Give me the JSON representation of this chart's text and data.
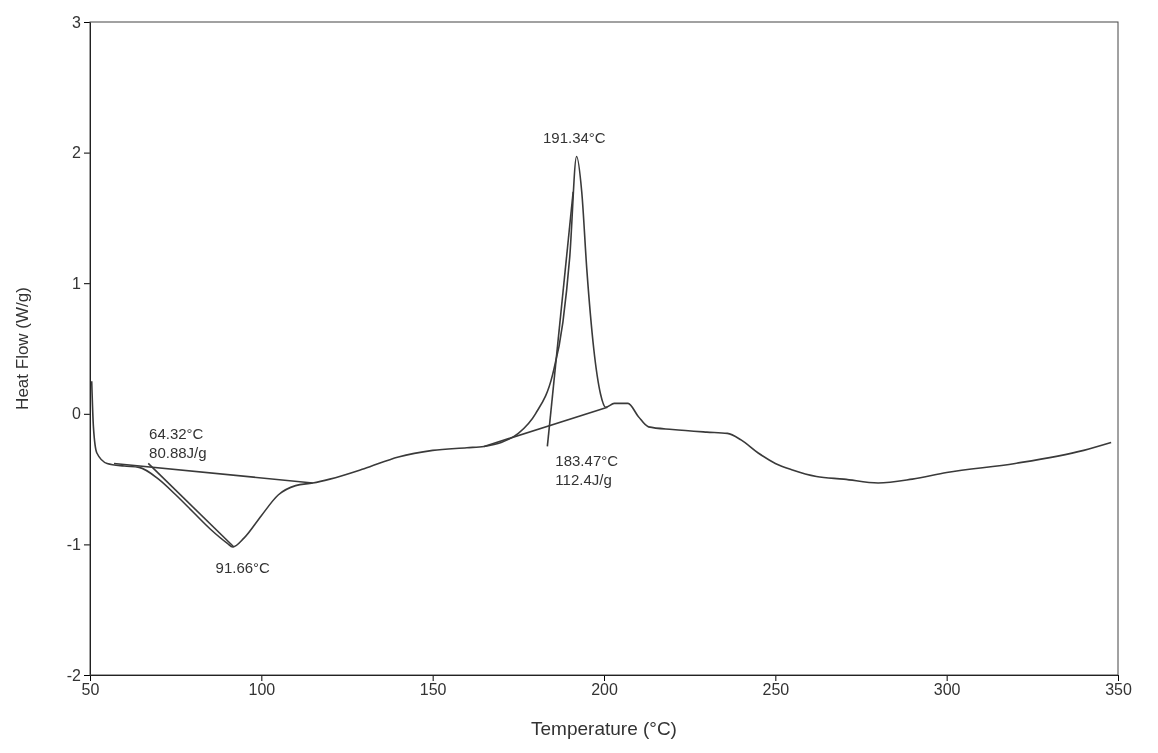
{
  "chart_data": {
    "type": "line",
    "xlabel": "Temperature (°C)",
    "ylabel": "Heat Flow (W/g)",
    "xlim": [
      50,
      350
    ],
    "ylim": [
      -2,
      3
    ],
    "xticks": [
      50,
      100,
      150,
      200,
      250,
      300,
      350
    ],
    "yticks": [
      -2,
      -1,
      0,
      1,
      2,
      3
    ],
    "grid": false,
    "marker": "none",
    "line_style": "solid",
    "series": [
      {
        "color": "#3a3a3a",
        "x": [
          50.5,
          51,
          52,
          55,
          60,
          64.3,
          70,
          75,
          80,
          85,
          90,
          91.66,
          95,
          100,
          105,
          110,
          115,
          120,
          130,
          140,
          150,
          160,
          165,
          170,
          175,
          180,
          185,
          188,
          190,
          192,
          193.5,
          195,
          197,
          199,
          200.5,
          203,
          207,
          210,
          213,
          220,
          230,
          236,
          240,
          245,
          250,
          255,
          262,
          270,
          280,
          290,
          300,
          320,
          340,
          348
        ],
        "values": [
          0.25,
          -0.1,
          -0.3,
          -0.38,
          -0.4,
          -0.41,
          -0.5,
          -0.62,
          -0.75,
          -0.88,
          -0.99,
          -1.02,
          -0.95,
          -0.78,
          -0.62,
          -0.55,
          -0.53,
          -0.5,
          -0.42,
          -0.33,
          -0.28,
          -0.26,
          -0.25,
          -0.22,
          -0.15,
          0,
          0.3,
          0.7,
          1.2,
          1.97,
          1.7,
          1.1,
          0.5,
          0.15,
          0.05,
          0.08,
          0.08,
          -0.02,
          -0.1,
          -0.12,
          -0.14,
          -0.15,
          -0.2,
          -0.3,
          -0.38,
          -0.43,
          -0.48,
          -0.5,
          -0.53,
          -0.5,
          -0.45,
          -0.38,
          -0.28,
          -0.22
        ]
      },
      {
        "color": "#3a3a3a",
        "x": [
          57,
          115
        ],
        "values": [
          -0.38,
          -0.53
        ]
      },
      {
        "color": "#3a3a3a",
        "x": [
          67,
          92
        ],
        "values": [
          -0.38,
          -1.02
        ]
      },
      {
        "color": "#3a3a3a",
        "x": [
          165,
          201
        ],
        "values": [
          -0.25,
          0.05
        ]
      },
      {
        "color": "#3a3a3a",
        "x": [
          183.47,
          191
        ],
        "values": [
          -0.25,
          1.7
        ]
      }
    ],
    "annotations": [
      {
        "text": "64.32°C",
        "x": 64.32,
        "y": -0.41
      },
      "80.88J/g",
      {
        "text": "91.66°C",
        "x": 91.66,
        "y": -1.02
      },
      {
        "text": "191.34°C",
        "x": 191.34,
        "y": 1.97
      },
      {
        "text": "183.47°C",
        "x": 183.47,
        "y": -0.25
      },
      "112.4J/g"
    ]
  }
}
